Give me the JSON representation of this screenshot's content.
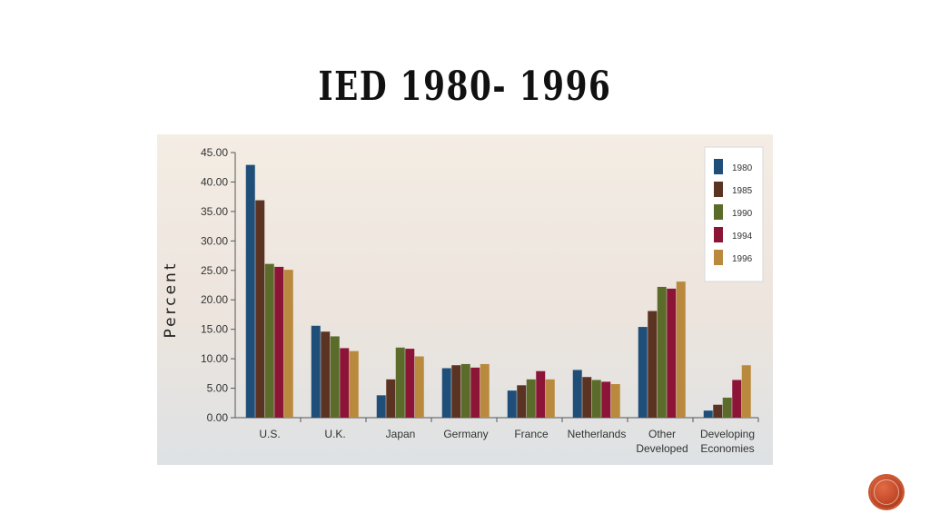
{
  "slide": {
    "title": "IED 1980- 1996"
  },
  "chart_data": {
    "type": "bar",
    "ylabel": "Percent",
    "ylim": [
      0,
      45
    ],
    "yticks": [
      "0.00",
      "5.00",
      "10.00",
      "15.00",
      "20.00",
      "25.00",
      "30.00",
      "35.00",
      "40.00",
      "45.00"
    ],
    "categories": [
      [
        "U.S."
      ],
      [
        "U.K."
      ],
      [
        "Japan"
      ],
      [
        "Germany"
      ],
      [
        "France"
      ],
      [
        "Netherlands"
      ],
      [
        "Other",
        "Developed"
      ],
      [
        "Developing",
        "Economies"
      ]
    ],
    "series": [
      {
        "name": "1980",
        "color": "#1f4e79",
        "values": [
          42.9,
          15.6,
          3.8,
          8.4,
          4.6,
          8.1,
          15.4,
          1.2
        ]
      },
      {
        "name": "1985",
        "color": "#5a3323",
        "values": [
          36.9,
          14.6,
          6.5,
          8.9,
          5.5,
          6.9,
          18.1,
          2.2
        ]
      },
      {
        "name": "1990",
        "color": "#5b6b2a",
        "values": [
          26.1,
          13.8,
          11.9,
          9.1,
          6.5,
          6.4,
          22.2,
          3.4
        ]
      },
      {
        "name": "1994",
        "color": "#8c1437",
        "values": [
          25.6,
          11.8,
          11.7,
          8.5,
          7.9,
          6.1,
          21.9,
          6.4
        ]
      },
      {
        "name": "1996",
        "color": "#b98a3e",
        "values": [
          25.1,
          11.3,
          10.4,
          9.1,
          6.5,
          5.7,
          23.1,
          8.9
        ]
      }
    ],
    "legend": "top-right",
    "grid": false
  }
}
